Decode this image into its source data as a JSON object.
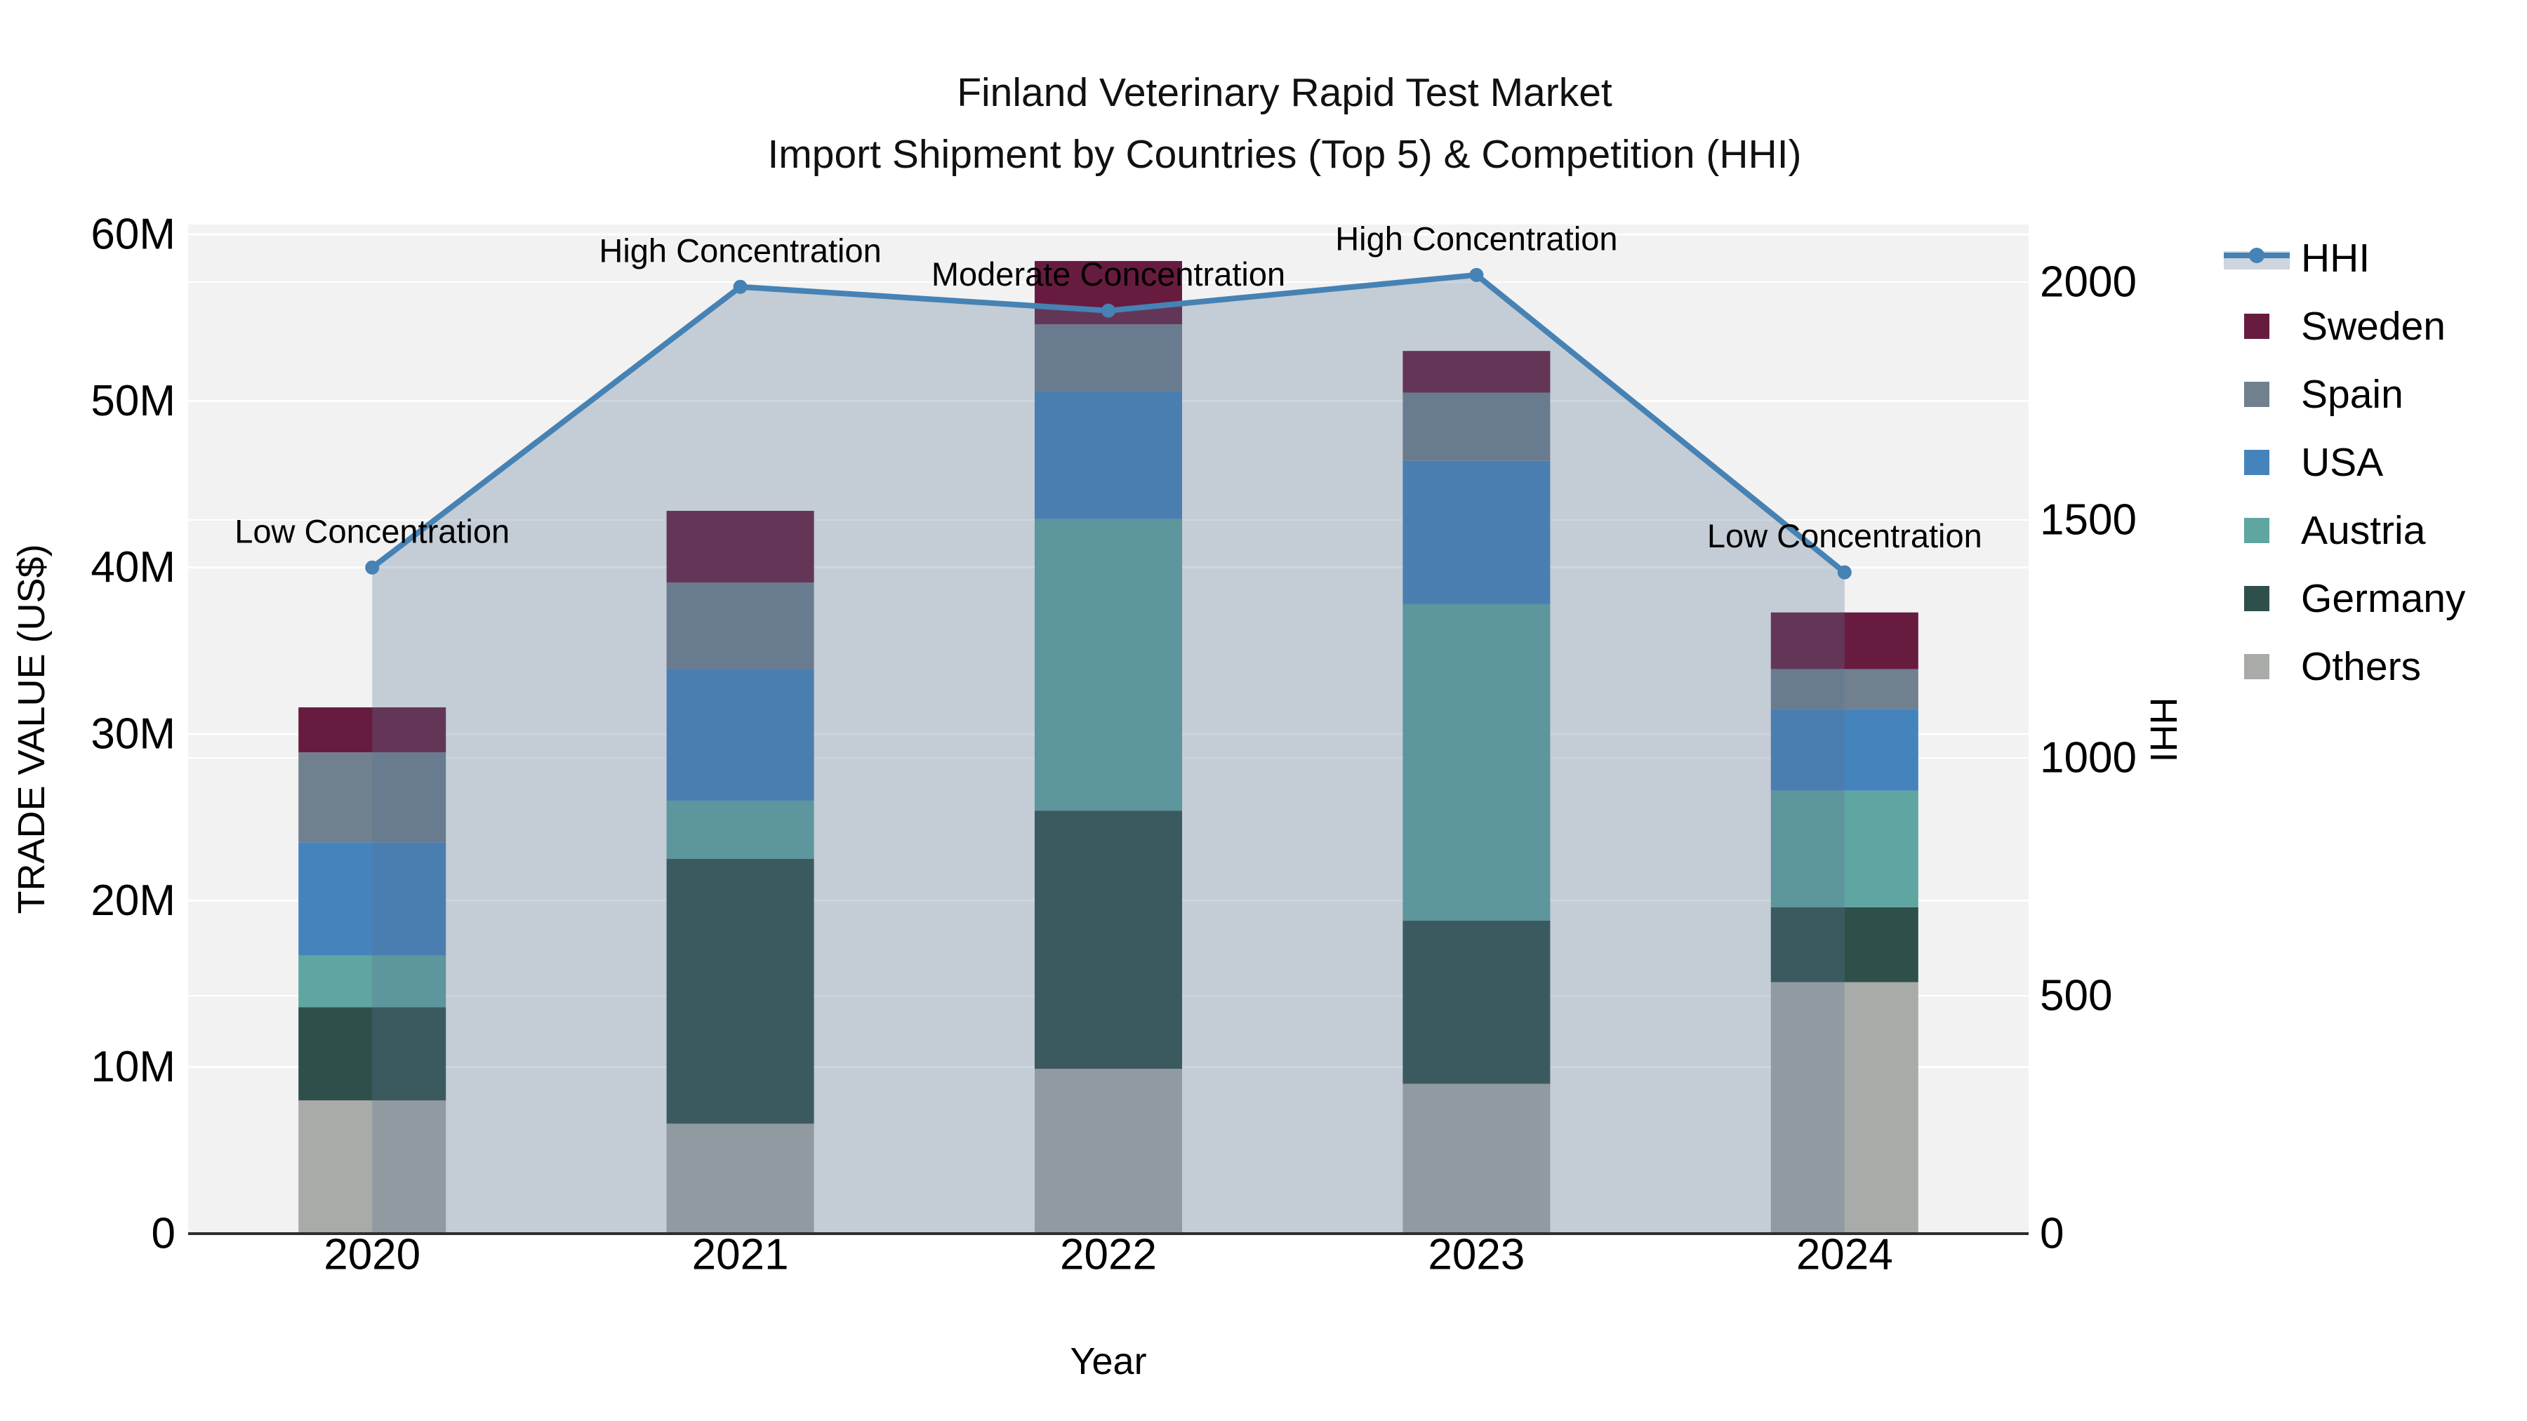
{
  "title": {
    "line1": "Finland Veterinary Rapid Test Market",
    "line2": "Import Shipment by Countries (Top 5) & Competition (HHI)"
  },
  "axes": {
    "x": {
      "label": "Year",
      "categories": [
        "2020",
        "2021",
        "2022",
        "2023",
        "2024"
      ]
    },
    "y_left": {
      "label": "TRADE VALUE (US$)",
      "tick_labels": [
        "0",
        "10M",
        "20M",
        "30M",
        "40M",
        "50M",
        "60M"
      ],
      "tick_values": [
        0,
        10,
        20,
        30,
        40,
        50,
        60
      ],
      "max_value": 60
    },
    "y_right": {
      "label": "HHI",
      "tick_labels": [
        "0",
        "500",
        "1000",
        "1500",
        "2000"
      ],
      "tick_values": [
        0,
        500,
        1000,
        1500,
        2000
      ],
      "max_value": 2000
    }
  },
  "chart_data": {
    "type": "combo: stacked bar (left axis, US$ millions) + line (right axis, HHI)",
    "categories": [
      "2020",
      "2021",
      "2022",
      "2023",
      "2024"
    ],
    "stack_order_bottom_to_top": [
      "Others",
      "Germany",
      "Austria",
      "USA",
      "Spain",
      "Sweden"
    ],
    "series": [
      {
        "name": "Others",
        "color": "#A9ABA8",
        "values": [
          8.0,
          6.6,
          9.9,
          9.0,
          15.1
        ]
      },
      {
        "name": "Germany",
        "color": "#2F4F4B",
        "values": [
          5.6,
          15.9,
          15.5,
          9.8,
          4.5
        ]
      },
      {
        "name": "Austria",
        "color": "#5FA5A1",
        "values": [
          3.1,
          3.5,
          17.5,
          19.0,
          7.0
        ]
      },
      {
        "name": "USA",
        "color": "#4583BD",
        "values": [
          6.8,
          7.9,
          7.7,
          8.6,
          4.9
        ]
      },
      {
        "name": "Spain",
        "color": "#70808F",
        "values": [
          5.4,
          5.2,
          4.0,
          4.1,
          2.4
        ]
      },
      {
        "name": "Sweden",
        "color": "#671C3F",
        "values": [
          2.7,
          4.3,
          3.8,
          2.5,
          3.4
        ]
      }
    ],
    "bar_totals": [
      31.6,
      43.4,
      58.4,
      53.0,
      37.3
    ],
    "hhi": {
      "name": "HHI",
      "values": [
        1400,
        1990,
        1940,
        2015,
        1390
      ],
      "line_color": "#4682B4",
      "area_fill": "rgba(88,115,145,0.30)"
    },
    "annotations": [
      {
        "category": "2020",
        "text": "Low Concentration"
      },
      {
        "category": "2021",
        "text": "High Concentration"
      },
      {
        "category": "2022",
        "text": "Moderate Concentration"
      },
      {
        "category": "2023",
        "text": "High Concentration"
      },
      {
        "category": "2024",
        "text": "Low Concentration"
      }
    ],
    "ylim_left": [
      0,
      60.6
    ],
    "ylim_right": [
      0,
      2120
    ],
    "grid": "horizontal white gridlines at 10M steps and 500 HHI steps",
    "legend_position": "right, outside plot"
  },
  "legend": {
    "items": [
      {
        "label": "HHI",
        "type": "line-marker",
        "color": "#4682B4"
      },
      {
        "label": "Sweden",
        "type": "swatch",
        "color": "#671C3F"
      },
      {
        "label": "Spain",
        "type": "swatch",
        "color": "#70808F"
      },
      {
        "label": "USA",
        "type": "swatch",
        "color": "#4583BD"
      },
      {
        "label": "Austria",
        "type": "swatch",
        "color": "#5FA5A1"
      },
      {
        "label": "Germany",
        "type": "swatch",
        "color": "#2F4F4B"
      },
      {
        "label": "Others",
        "type": "swatch",
        "color": "#A9ABA8"
      }
    ]
  },
  "colors": {
    "figure_bg": "#ffffff",
    "plot_bg": "#f2f2f3",
    "gridline": "#ffffff",
    "spine": "#2e2e2e",
    "text": "#000000",
    "hhi_line": "#4682B4",
    "area_fill": "rgba(88,115,145,0.30)"
  }
}
